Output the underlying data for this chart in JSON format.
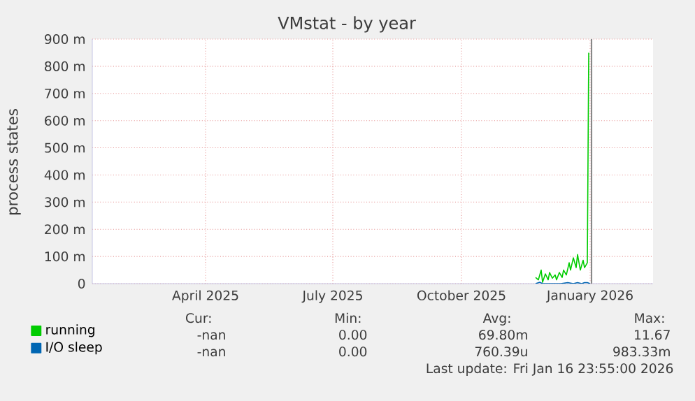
{
  "chart_data": {
    "type": "line",
    "title": "VMstat - by year",
    "ylabel": "process states",
    "xlim": [
      "2025-01-24",
      "2026-03-01"
    ],
    "xticks": [
      {
        "value": "2025-04-15",
        "label": "April 2025"
      },
      {
        "value": "2025-07-15",
        "label": "July 2025"
      },
      {
        "value": "2025-10-15",
        "label": "October 2025"
      },
      {
        "value": "2026-01-15",
        "label": "January 2026"
      }
    ],
    "ylim": [
      0,
      900
    ],
    "yticks": [
      0,
      {
        "value": 100,
        "label": "100 m"
      },
      {
        "value": 200,
        "label": "200 m"
      },
      {
        "value": 300,
        "label": "300 m"
      },
      {
        "value": 400,
        "label": "400 m"
      },
      {
        "value": 500,
        "label": "500 m"
      },
      {
        "value": 600,
        "label": "600 m"
      },
      {
        "value": 700,
        "label": "700 m"
      },
      {
        "value": 800,
        "label": "800 m"
      },
      {
        "value": 900,
        "label": "900 m"
      }
    ],
    "grid": true,
    "legend": "bottom left",
    "series": [
      {
        "name": "running",
        "color": "#00cc00",
        "x": [
          "2025-12-07",
          "2025-12-09",
          "2025-12-11",
          "2025-12-12",
          "2025-12-14",
          "2025-12-16",
          "2025-12-17",
          "2025-12-19",
          "2025-12-21",
          "2025-12-22",
          "2025-12-24",
          "2025-12-26",
          "2025-12-27",
          "2025-12-29",
          "2025-12-31",
          "2026-01-01",
          "2026-01-03",
          "2026-01-05",
          "2026-01-06",
          "2026-01-08",
          "2026-01-10",
          "2026-01-11",
          "2026-01-13",
          "2026-01-14"
        ],
        "values": [
          23,
          14,
          50,
          5,
          36,
          14,
          41,
          20,
          32,
          14,
          41,
          23,
          50,
          32,
          77,
          50,
          95,
          59,
          107,
          50,
          86,
          59,
          77,
          850
        ]
      },
      {
        "name": "I/O sleep",
        "color": "#0066b3",
        "x": [
          "2025-12-07",
          "2025-12-10",
          "2025-12-12",
          "2025-12-25",
          "2025-12-30",
          "2026-01-03",
          "2026-01-06",
          "2026-01-09",
          "2026-01-11",
          "2026-01-13",
          "2026-01-15"
        ],
        "values": [
          0,
          5,
          0,
          0,
          4,
          0,
          4,
          0,
          4,
          4,
          0
        ]
      }
    ],
    "ref_lines": [
      {
        "axis": "x",
        "value": "2026-01-16",
        "color": "#888888"
      }
    ],
    "annotations": [
      "Cur:",
      "Min:",
      "Avg:",
      "Max:",
      "-nan",
      "0.00",
      "69.80m",
      "11.67",
      "-nan",
      "0.00",
      "760.39u",
      "983.33m",
      "Last update: Fri Jan 16 23:55:00 2026"
    ]
  }
}
